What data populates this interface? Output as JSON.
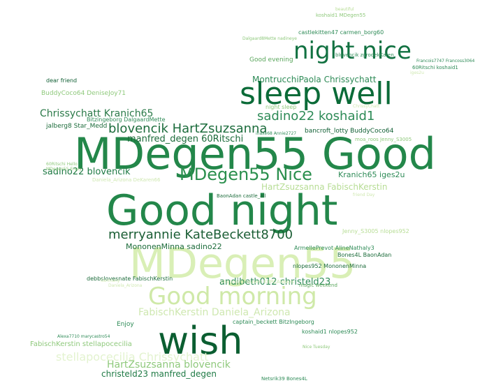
{
  "words": [
    {
      "text": "MDegen55 Good",
      "color": "#23874a"
    },
    {
      "text": "Good night",
      "color": "#23874a"
    },
    {
      "text": "MDegen55",
      "color": "#d9efb6"
    },
    {
      "text": "sleep well",
      "color": "#0b6b38"
    },
    {
      "text": "wish",
      "color": "#0b5e31"
    },
    {
      "text": "Good morning",
      "color": "#cfe9a8"
    },
    {
      "text": "night nice",
      "color": "#117141"
    },
    {
      "text": "MDegen55 Nice",
      "color": "#2a8f4d"
    },
    {
      "text": "merryannie KateBeckett8700",
      "color": "#1b5e35"
    },
    {
      "text": "blovencik HartZsuzsanna",
      "color": "#1c6c3c"
    },
    {
      "text": "Chrissychatt Kranich65",
      "color": "#2b7a49"
    },
    {
      "text": "sadino22 koshaid1",
      "color": "#2e8b57"
    },
    {
      "text": "FabischKerstin Daniela_Arizona",
      "color": "#cfe8b1"
    },
    {
      "text": "andibeth012 christeld23",
      "color": "#2e8b57"
    },
    {
      "text": "HartZsuzsanna FabischKerstin",
      "color": "#b7dd95"
    },
    {
      "text": "stellapocecilia Chrissychatt",
      "color": "#e3f3cf"
    },
    {
      "text": "HartZsuzsanna blovencik",
      "color": "#8fc97c"
    },
    {
      "text": "christeld23 manfred_degen",
      "color": "#1f7a45"
    },
    {
      "text": "manfred_degen 60Ritschi",
      "color": "#1b6b3a"
    },
    {
      "text": "sadino22 blovencik",
      "color": "#1f7a45"
    },
    {
      "text": "MononenMinna sadino22",
      "color": "#1b6b3a"
    },
    {
      "text": "Kranich65 iges2u",
      "color": "#2e8b57"
    },
    {
      "text": "MontrucchiPaola Chrissychatt",
      "color": "#2e8b57"
    },
    {
      "text": "Good evening",
      "color": "#5aa65c"
    },
    {
      "text": "FabischKerstin stellapocecilia",
      "color": "#8fc97c"
    },
    {
      "text": "BuddyCoco64 DeniseJoy71",
      "color": "#8fc97c"
    },
    {
      "text": "bancroft_lotty BuddyCoco64",
      "color": "#0f5e33"
    },
    {
      "text": "jalberg8 Star_Medd",
      "color": "#1b6b3a"
    },
    {
      "text": "castlekitten47 carmen_borg60",
      "color": "#2e8b57"
    },
    {
      "text": "Bitzingeborg DalgaardMette",
      "color": "#2e8b57"
    },
    {
      "text": "debbslovesnate FabischKerstin",
      "color": "#1b6b3a"
    },
    {
      "text": "nlopes952 MononenMinna",
      "color": "#1b6b3a"
    },
    {
      "text": "ArmellePrevot AlineNathaly3",
      "color": "#2e8b57"
    },
    {
      "text": "koshaid1 nlopes952",
      "color": "#2e8b57"
    },
    {
      "text": "captain_beckett BitzIngeborg",
      "color": "#2e8b57"
    },
    {
      "text": "Bones4L BaonAdan",
      "color": "#1b6b3a"
    },
    {
      "text": "Enjoy",
      "color": "#2e8b57"
    },
    {
      "text": "dear friend",
      "color": "#0f5e33"
    },
    {
      "text": "night sleep",
      "color": "#8fc97c"
    },
    {
      "text": "moa_roos Jenny_S3005",
      "color": "#8fc97c"
    },
    {
      "text": "Jenny_S3005 nlopes952",
      "color": "#b7dd95"
    },
    {
      "text": "BaonAdan castle_all",
      "color": "#1b6b3a"
    },
    {
      "text": "Netsrik39 Bones4L",
      "color": "#2e8b57"
    },
    {
      "text": "60Ritschi koshaid1",
      "color": "#2e8b57"
    },
    {
      "text": "blovencik zgrodekKaren",
      "color": "#2e8b57"
    },
    {
      "text": "koshaid1 MDegen55",
      "color": "#8fc97c"
    },
    {
      "text": "magic weekend",
      "color": "#5aa65c"
    },
    {
      "text": "shannon_hausen KBRCAlways",
      "color": "#cfe8b1"
    },
    {
      "text": "Dalgaard8Mette nadineye",
      "color": "#8fc97c"
    },
    {
      "text": "beautiful",
      "color": "#b7dd95"
    },
    {
      "text": "Francois7747 Francoss3064",
      "color": "#2e8b57"
    },
    {
      "text": "friend Day",
      "color": "#cfe8b1"
    },
    {
      "text": "Nice Tuesday",
      "color": "#8fc97c"
    },
    {
      "text": "iges2u",
      "color": "#cfe8b1"
    },
    {
      "text": "Alexa7710 marycastro54",
      "color": "#2e8b57"
    },
    {
      "text": "inaxe68 Annie2727",
      "color": "#2e8b57"
    },
    {
      "text": "Daniela_Arizona DeKaren66",
      "color": "#cfe8b1"
    },
    {
      "text": "60Ritschi Hello",
      "color": "#8fc97c"
    },
    {
      "text": "MDegen55 Enjoy",
      "color": "#8fc97c"
    },
    {
      "text": "Germany",
      "color": "#cfe8b1"
    },
    {
      "text": "ChrissyChatt",
      "color": "#cfe8b1"
    },
    {
      "text": "Daniela_Arizona",
      "color": "#cfe8b1"
    }
  ]
}
